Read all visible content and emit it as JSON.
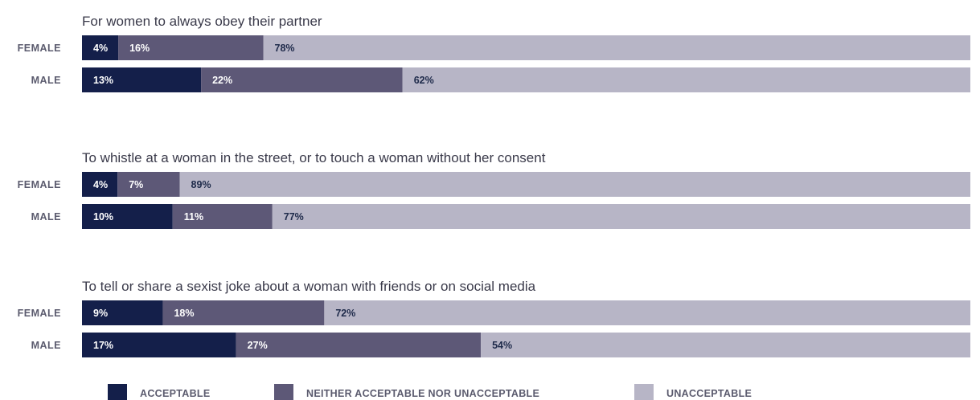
{
  "chart_data": {
    "type": "bar",
    "stacked": true,
    "orientation": "horizontal",
    "colors": {
      "ACCEPTABLE": "#141f4a",
      "NEITHER ACCEPTABLE NOR UNACCEPTABLE": "#5d5877",
      "UNACCEPTABLE": "#b7b5c6"
    },
    "legend": {
      "position": "bottom",
      "entries": [
        "ACCEPTABLE",
        "NEITHER ACCEPTABLE NOR UNACCEPTABLE",
        "UNACCEPTABLE"
      ]
    },
    "groups": [
      {
        "title": "For women to always obey their partner",
        "rows": [
          {
            "label": "FEMALE",
            "values": [
              4,
              16,
              78
            ],
            "value_labels": [
              "4%",
              "16%",
              "78%"
            ]
          },
          {
            "label": "MALE",
            "values": [
              13,
              22,
              62
            ],
            "value_labels": [
              "13%",
              "22%",
              "62%"
            ]
          }
        ]
      },
      {
        "title": "To whistle at a woman in the street, or to touch a woman without her consent",
        "rows": [
          {
            "label": "FEMALE",
            "values": [
              4,
              7,
              89
            ],
            "value_labels": [
              "4%",
              "7%",
              "89%"
            ]
          },
          {
            "label": "MALE",
            "values": [
              10,
              11,
              77
            ],
            "value_labels": [
              "10%",
              "11%",
              "77%"
            ]
          }
        ]
      },
      {
        "title": "To tell or share a sexist joke about a woman with friends or on social media",
        "rows": [
          {
            "label": "FEMALE",
            "values": [
              9,
              18,
              72
            ],
            "value_labels": [
              "9%",
              "18%",
              "72%"
            ]
          },
          {
            "label": "MALE",
            "values": [
              17,
              27,
              54
            ],
            "value_labels": [
              "17%",
              "27%",
              "54%"
            ]
          }
        ]
      }
    ]
  }
}
